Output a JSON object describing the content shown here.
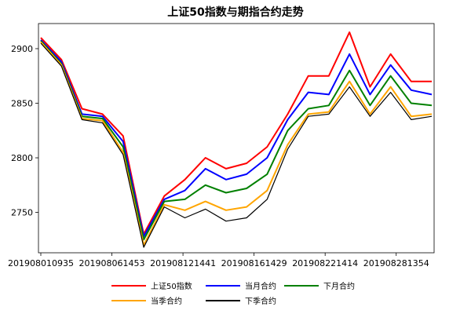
{
  "chart_data": {
    "type": "line",
    "title": "上证50指数与期指合约走势",
    "xlabel": "",
    "ylabel": "",
    "ylim": [
      2713,
      2923
    ],
    "grid": false,
    "legend_placement": "bottom",
    "x_ticks": [
      "201908010935",
      "201908061453",
      "201908121441",
      "201908161429",
      "201908221414",
      "201908281354"
    ],
    "y_ticks": [
      2750,
      2800,
      2850,
      2900
    ],
    "x_count": 20,
    "series": [
      {
        "name": "上证50指数",
        "color": "#ff0000",
        "values": [
          2910,
          2890,
          2845,
          2840,
          2820,
          2730,
          2765,
          2780,
          2800,
          2790,
          2795,
          2810,
          2840,
          2875,
          2875,
          2915,
          2865,
          2895,
          2870,
          2870
        ]
      },
      {
        "name": "当月合约",
        "color": "#0000ff",
        "values": [
          2908,
          2888,
          2840,
          2838,
          2815,
          2728,
          2762,
          2770,
          2790,
          2780,
          2785,
          2800,
          2835,
          2860,
          2858,
          2895,
          2858,
          2885,
          2862,
          2858
        ]
      },
      {
        "name": "下月合约",
        "color": "#008000",
        "values": [
          2907,
          2886,
          2838,
          2836,
          2810,
          2725,
          2760,
          2762,
          2775,
          2768,
          2772,
          2785,
          2825,
          2845,
          2848,
          2880,
          2848,
          2875,
          2850,
          2848
        ]
      },
      {
        "name": "当季合约",
        "color": "#ffa500",
        "values": [
          2906,
          2885,
          2836,
          2834,
          2805,
          2720,
          2757,
          2752,
          2760,
          2752,
          2755,
          2770,
          2812,
          2840,
          2842,
          2870,
          2840,
          2865,
          2838,
          2840
        ]
      },
      {
        "name": "下季合约",
        "color": "#000000",
        "values": [
          2905,
          2884,
          2835,
          2832,
          2803,
          2718,
          2755,
          2745,
          2753,
          2742,
          2745,
          2762,
          2808,
          2838,
          2840,
          2865,
          2838,
          2860,
          2835,
          2838
        ]
      }
    ]
  }
}
